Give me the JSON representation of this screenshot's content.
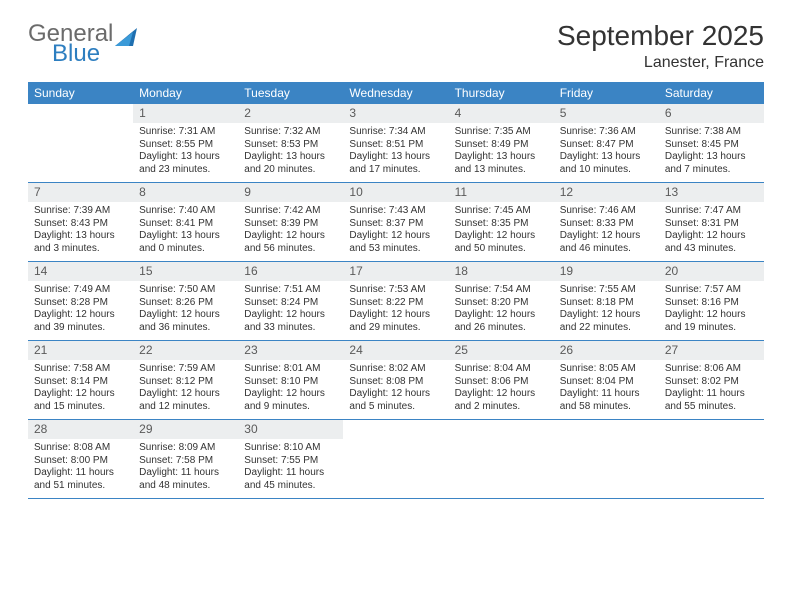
{
  "logo": {
    "text1": "General",
    "text2": "Blue"
  },
  "title": "September 2025",
  "subtitle": "Lanester, France",
  "day_headers": [
    "Sunday",
    "Monday",
    "Tuesday",
    "Wednesday",
    "Thursday",
    "Friday",
    "Saturday"
  ],
  "header_bg": "#3b84c4",
  "header_fg": "#ffffff",
  "daynum_bg": "#eceeef",
  "week_border": "#3b84c4",
  "weeks": [
    [
      {
        "empty": true
      },
      {
        "day": "1",
        "sunrise": "Sunrise: 7:31 AM",
        "sunset": "Sunset: 8:55 PM",
        "daylight": "Daylight: 13 hours and 23 minutes."
      },
      {
        "day": "2",
        "sunrise": "Sunrise: 7:32 AM",
        "sunset": "Sunset: 8:53 PM",
        "daylight": "Daylight: 13 hours and 20 minutes."
      },
      {
        "day": "3",
        "sunrise": "Sunrise: 7:34 AM",
        "sunset": "Sunset: 8:51 PM",
        "daylight": "Daylight: 13 hours and 17 minutes."
      },
      {
        "day": "4",
        "sunrise": "Sunrise: 7:35 AM",
        "sunset": "Sunset: 8:49 PM",
        "daylight": "Daylight: 13 hours and 13 minutes."
      },
      {
        "day": "5",
        "sunrise": "Sunrise: 7:36 AM",
        "sunset": "Sunset: 8:47 PM",
        "daylight": "Daylight: 13 hours and 10 minutes."
      },
      {
        "day": "6",
        "sunrise": "Sunrise: 7:38 AM",
        "sunset": "Sunset: 8:45 PM",
        "daylight": "Daylight: 13 hours and 7 minutes."
      }
    ],
    [
      {
        "day": "7",
        "sunrise": "Sunrise: 7:39 AM",
        "sunset": "Sunset: 8:43 PM",
        "daylight": "Daylight: 13 hours and 3 minutes."
      },
      {
        "day": "8",
        "sunrise": "Sunrise: 7:40 AM",
        "sunset": "Sunset: 8:41 PM",
        "daylight": "Daylight: 13 hours and 0 minutes."
      },
      {
        "day": "9",
        "sunrise": "Sunrise: 7:42 AM",
        "sunset": "Sunset: 8:39 PM",
        "daylight": "Daylight: 12 hours and 56 minutes."
      },
      {
        "day": "10",
        "sunrise": "Sunrise: 7:43 AM",
        "sunset": "Sunset: 8:37 PM",
        "daylight": "Daylight: 12 hours and 53 minutes."
      },
      {
        "day": "11",
        "sunrise": "Sunrise: 7:45 AM",
        "sunset": "Sunset: 8:35 PM",
        "daylight": "Daylight: 12 hours and 50 minutes."
      },
      {
        "day": "12",
        "sunrise": "Sunrise: 7:46 AM",
        "sunset": "Sunset: 8:33 PM",
        "daylight": "Daylight: 12 hours and 46 minutes."
      },
      {
        "day": "13",
        "sunrise": "Sunrise: 7:47 AM",
        "sunset": "Sunset: 8:31 PM",
        "daylight": "Daylight: 12 hours and 43 minutes."
      }
    ],
    [
      {
        "day": "14",
        "sunrise": "Sunrise: 7:49 AM",
        "sunset": "Sunset: 8:28 PM",
        "daylight": "Daylight: 12 hours and 39 minutes."
      },
      {
        "day": "15",
        "sunrise": "Sunrise: 7:50 AM",
        "sunset": "Sunset: 8:26 PM",
        "daylight": "Daylight: 12 hours and 36 minutes."
      },
      {
        "day": "16",
        "sunrise": "Sunrise: 7:51 AM",
        "sunset": "Sunset: 8:24 PM",
        "daylight": "Daylight: 12 hours and 33 minutes."
      },
      {
        "day": "17",
        "sunrise": "Sunrise: 7:53 AM",
        "sunset": "Sunset: 8:22 PM",
        "daylight": "Daylight: 12 hours and 29 minutes."
      },
      {
        "day": "18",
        "sunrise": "Sunrise: 7:54 AM",
        "sunset": "Sunset: 8:20 PM",
        "daylight": "Daylight: 12 hours and 26 minutes."
      },
      {
        "day": "19",
        "sunrise": "Sunrise: 7:55 AM",
        "sunset": "Sunset: 8:18 PM",
        "daylight": "Daylight: 12 hours and 22 minutes."
      },
      {
        "day": "20",
        "sunrise": "Sunrise: 7:57 AM",
        "sunset": "Sunset: 8:16 PM",
        "daylight": "Daylight: 12 hours and 19 minutes."
      }
    ],
    [
      {
        "day": "21",
        "sunrise": "Sunrise: 7:58 AM",
        "sunset": "Sunset: 8:14 PM",
        "daylight": "Daylight: 12 hours and 15 minutes."
      },
      {
        "day": "22",
        "sunrise": "Sunrise: 7:59 AM",
        "sunset": "Sunset: 8:12 PM",
        "daylight": "Daylight: 12 hours and 12 minutes."
      },
      {
        "day": "23",
        "sunrise": "Sunrise: 8:01 AM",
        "sunset": "Sunset: 8:10 PM",
        "daylight": "Daylight: 12 hours and 9 minutes."
      },
      {
        "day": "24",
        "sunrise": "Sunrise: 8:02 AM",
        "sunset": "Sunset: 8:08 PM",
        "daylight": "Daylight: 12 hours and 5 minutes."
      },
      {
        "day": "25",
        "sunrise": "Sunrise: 8:04 AM",
        "sunset": "Sunset: 8:06 PM",
        "daylight": "Daylight: 12 hours and 2 minutes."
      },
      {
        "day": "26",
        "sunrise": "Sunrise: 8:05 AM",
        "sunset": "Sunset: 8:04 PM",
        "daylight": "Daylight: 11 hours and 58 minutes."
      },
      {
        "day": "27",
        "sunrise": "Sunrise: 8:06 AM",
        "sunset": "Sunset: 8:02 PM",
        "daylight": "Daylight: 11 hours and 55 minutes."
      }
    ],
    [
      {
        "day": "28",
        "sunrise": "Sunrise: 8:08 AM",
        "sunset": "Sunset: 8:00 PM",
        "daylight": "Daylight: 11 hours and 51 minutes."
      },
      {
        "day": "29",
        "sunrise": "Sunrise: 8:09 AM",
        "sunset": "Sunset: 7:58 PM",
        "daylight": "Daylight: 11 hours and 48 minutes."
      },
      {
        "day": "30",
        "sunrise": "Sunrise: 8:10 AM",
        "sunset": "Sunset: 7:55 PM",
        "daylight": "Daylight: 11 hours and 45 minutes."
      },
      {
        "empty": true
      },
      {
        "empty": true
      },
      {
        "empty": true
      },
      {
        "empty": true
      }
    ]
  ]
}
